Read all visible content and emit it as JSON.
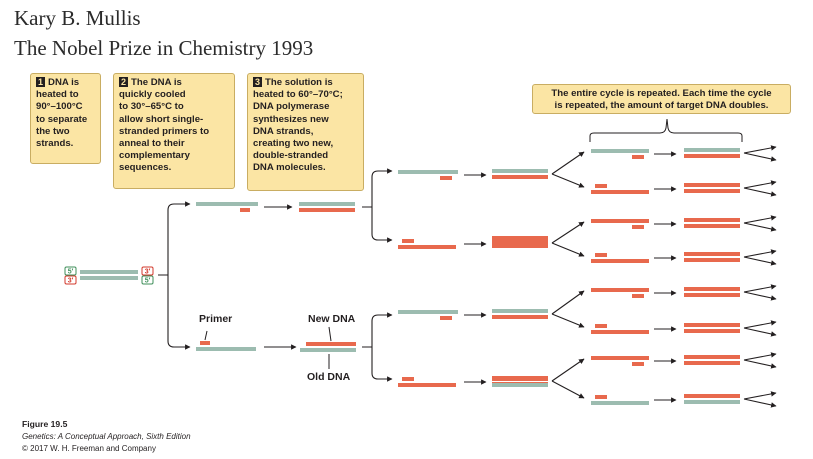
{
  "header": {
    "author": "Kary B. Mullis",
    "prize": "The Nobel Prize in Chemistry 1993"
  },
  "steps": [
    {
      "number": "1",
      "lines": [
        "DNA is",
        "heated to",
        "90°–100°C",
        "to separate",
        "the two",
        "strands."
      ]
    },
    {
      "number": "2",
      "lines": [
        "The DNA is",
        "quickly cooled",
        "to 30°–65°C to",
        "allow short single-",
        "stranded primers to",
        "anneal to their",
        "complementary",
        "sequences."
      ]
    },
    {
      "number": "3",
      "lines": [
        "The solution is",
        "heated to 60°–70°C;",
        "DNA polymerase",
        "synthesizes new",
        "DNA strands,",
        "creating two new,",
        "double-stranded",
        "DNA molecules."
      ]
    }
  ],
  "cycle_note": {
    "lines": [
      "The entire cycle is repeated. Each time the cycle",
      "is repeated, the amount of target DNA doubles."
    ]
  },
  "labels": {
    "five_prime": "5′",
    "three_prime": "3′",
    "primer": "Primer",
    "new_dna": "New DNA",
    "old_dna": "Old DNA"
  },
  "figure": {
    "title": "Figure 19.5",
    "book": "Genetics: A Conceptual Approach, Sixth Edition",
    "copyright": "© 2017 W. H. Freeman and Company"
  },
  "colors": {
    "old_strand": "#9cbcb0",
    "new_strand": "#e8694d",
    "note_fill": "#fbe5a4",
    "arrow": "#231f20"
  }
}
